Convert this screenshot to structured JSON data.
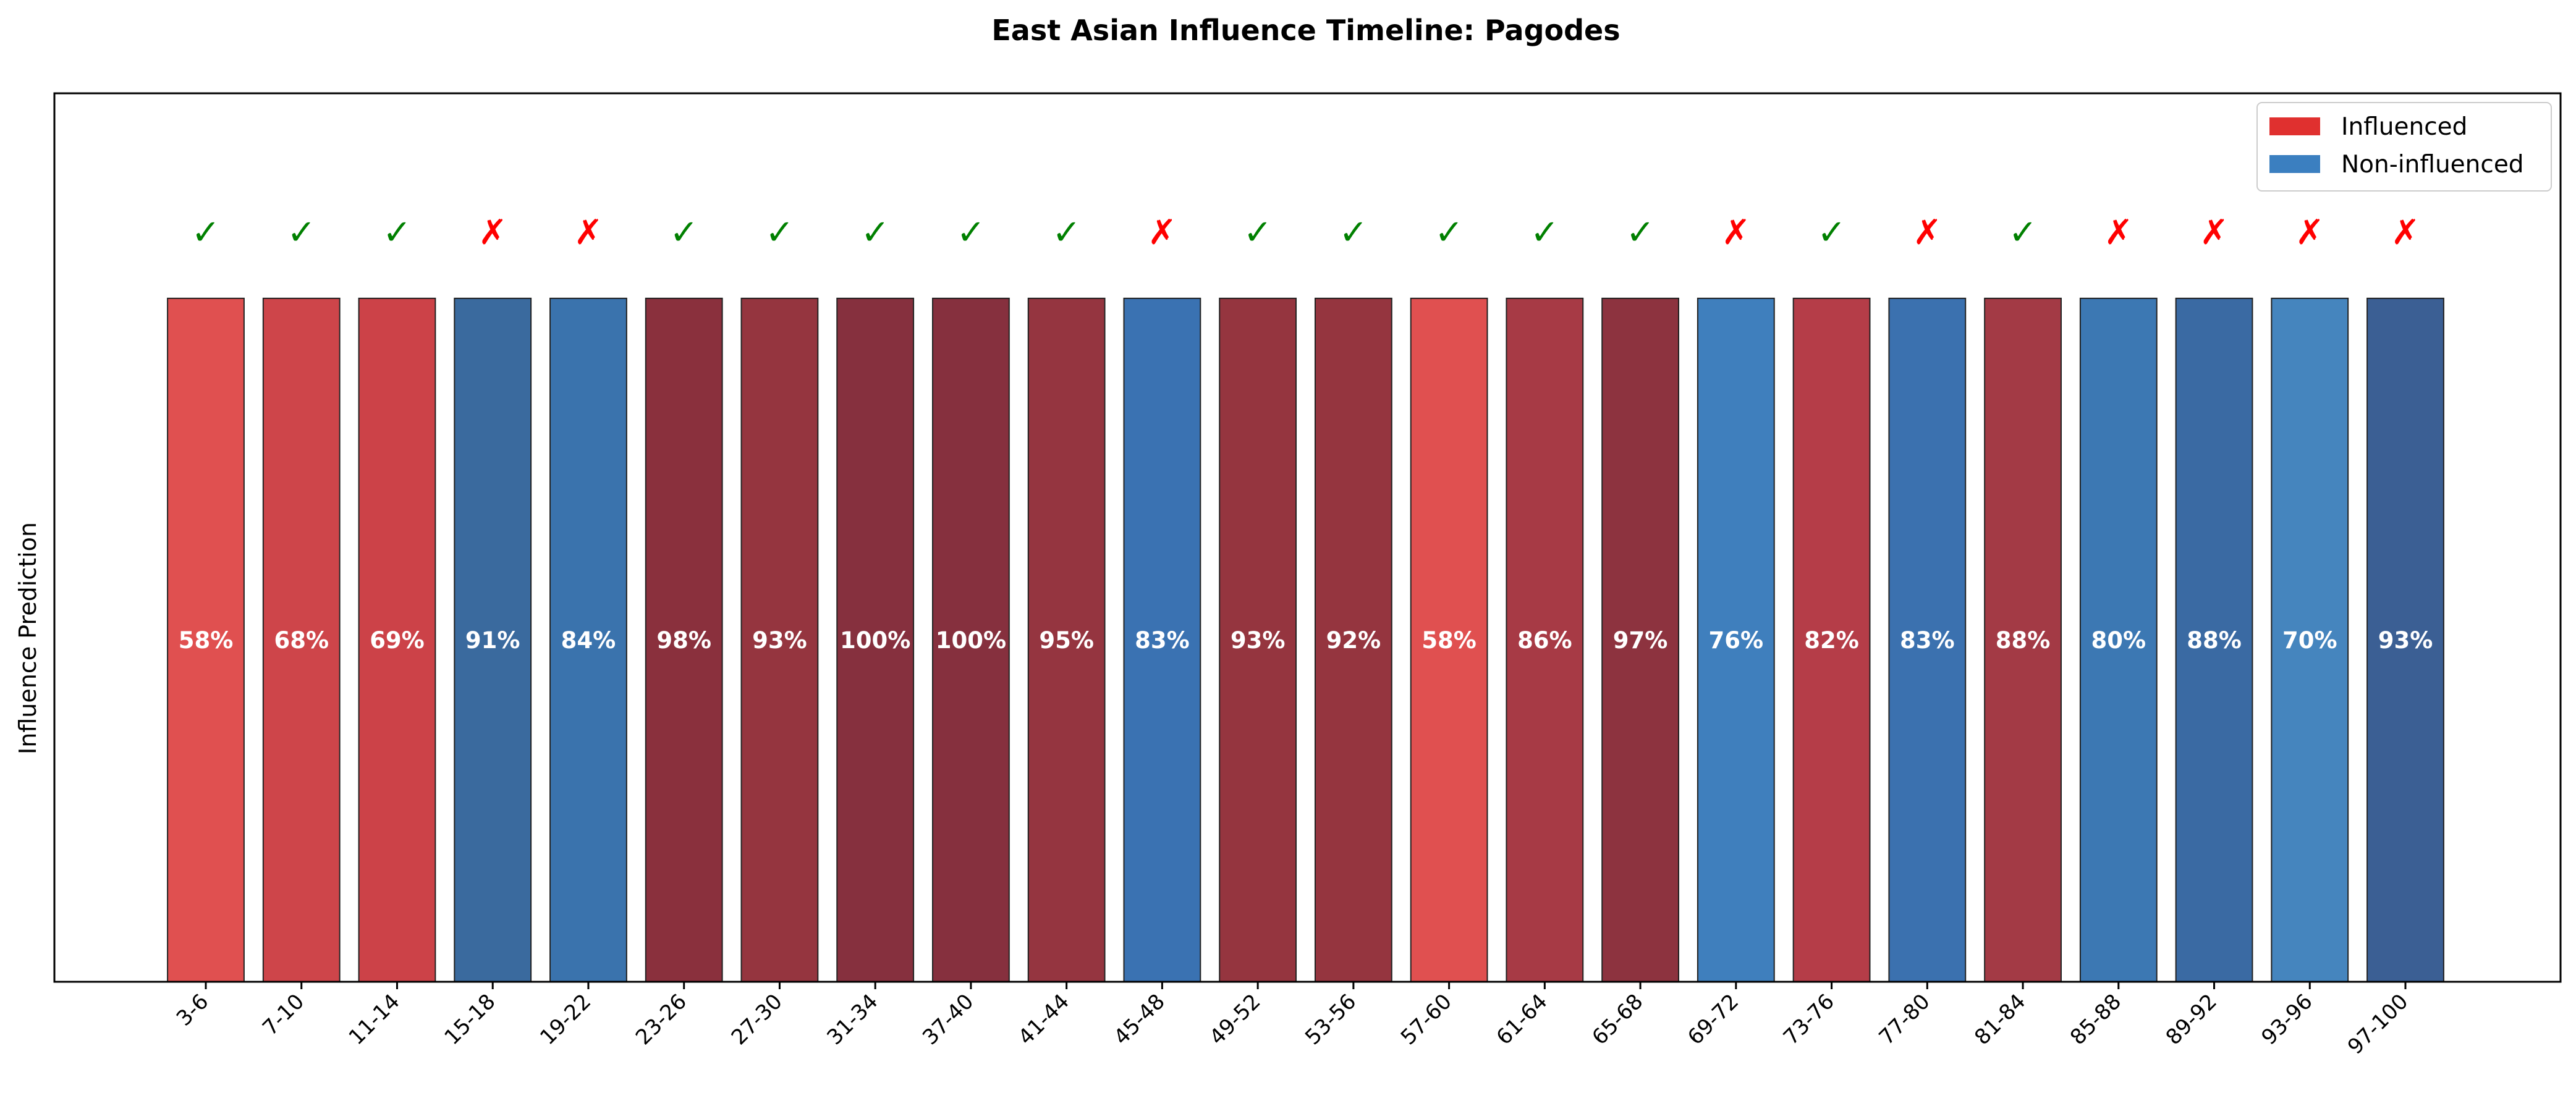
{
  "chart_data": {
    "type": "bar",
    "title": "East Asian Influence Timeline: Pagodes",
    "xlabel": "",
    "ylabel": "Influence Prediction",
    "grid": false,
    "legend_position": "top-right",
    "legend": [
      {
        "label": "Influenced",
        "color": "#e0302f"
      },
      {
        "label": "Non-influenced",
        "color": "#3b7fc0"
      }
    ],
    "categories": [
      "3-6",
      "7-10",
      "11-14",
      "15-18",
      "19-22",
      "23-26",
      "27-30",
      "31-34",
      "37-40",
      "41-44",
      "45-48",
      "49-52",
      "53-56",
      "57-60",
      "61-64",
      "65-68",
      "69-72",
      "73-76",
      "77-80",
      "81-84",
      "85-88",
      "89-92",
      "93-96",
      "97-100"
    ],
    "values": [
      1,
      1,
      1,
      1,
      1,
      1,
      1,
      1,
      1,
      1,
      1,
      1,
      1,
      1,
      1,
      1,
      1,
      1,
      1,
      1,
      1,
      1,
      1,
      1
    ],
    "confidence_labels": [
      "58%",
      "68%",
      "69%",
      "91%",
      "84%",
      "98%",
      "93%",
      "100%",
      "100%",
      "95%",
      "83%",
      "93%",
      "92%",
      "58%",
      "86%",
      "97%",
      "76%",
      "82%",
      "83%",
      "88%",
      "80%",
      "88%",
      "70%",
      "93%"
    ],
    "classes": [
      "Influenced",
      "Influenced",
      "Influenced",
      "Non-influenced",
      "Non-influenced",
      "Influenced",
      "Influenced",
      "Influenced",
      "Influenced",
      "Influenced",
      "Non-influenced",
      "Influenced",
      "Influenced",
      "Influenced",
      "Influenced",
      "Influenced",
      "Non-influenced",
      "Influenced",
      "Non-influenced",
      "Influenced",
      "Non-influenced",
      "Non-influenced",
      "Non-influenced",
      "Non-influenced"
    ],
    "correct_marks": [
      "✓",
      "✓",
      "✓",
      "✗",
      "✗",
      "✓",
      "✓",
      "✓",
      "✓",
      "✓",
      "✗",
      "✓",
      "✓",
      "✓",
      "✓",
      "✓",
      "✗",
      "✓",
      "✗",
      "✓",
      "✗",
      "✗",
      "✗",
      "✗"
    ],
    "bar_colors": [
      "#e05050",
      "#ce454a",
      "#cc4248",
      "#3a6a9e",
      "#3a73ad",
      "#8a303d",
      "#95353f",
      "#86303e",
      "#86303e",
      "#953540",
      "#3a72b2",
      "#95353f",
      "#95353f",
      "#e05050",
      "#a73a45",
      "#8d333f",
      "#3f7fbd",
      "#b53d48",
      "#3b71af",
      "#a33a45",
      "#3c78b3",
      "#3a6aa3",
      "#4585be",
      "#3b5f94"
    ],
    "mark_colors": {
      "correct": "#008000",
      "incorrect": "#ff0000"
    },
    "ylim": [
      0,
      1.3
    ]
  }
}
